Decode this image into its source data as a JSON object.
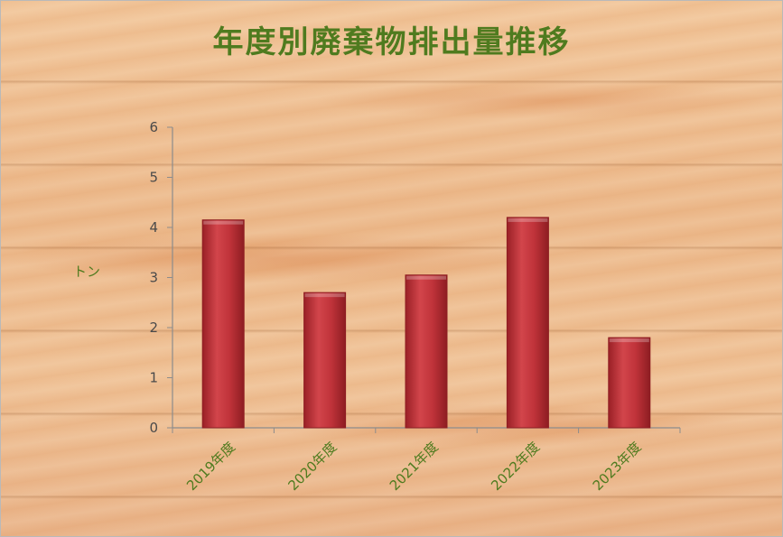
{
  "chart_data": {
    "type": "bar",
    "title": "年度別廃棄物排出量推移",
    "categories": [
      "2019年度",
      "2020年度",
      "2021年度",
      "2022年度",
      "2023年度"
    ],
    "series": [
      {
        "values": [
          4.15,
          2.7,
          3.05,
          4.2,
          1.8
        ]
      }
    ],
    "ylabel": "トン",
    "xlabel": "",
    "ylim": [
      0,
      6
    ],
    "yticks": [
      "0",
      "1",
      "2",
      "3",
      "4",
      "5",
      "6"
    ],
    "grid": false,
    "legend": "none",
    "colors": {
      "bar": "#c0333a",
      "bar_dark": "#8e1d22",
      "title": "#4f7b1f",
      "axis": "#8c8c8c"
    }
  }
}
